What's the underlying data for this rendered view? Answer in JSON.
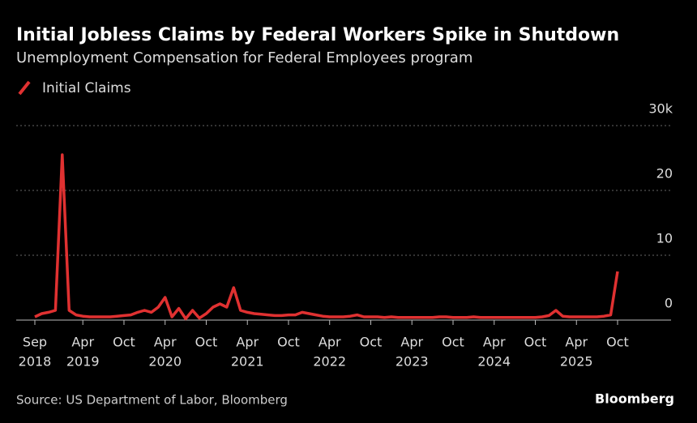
{
  "chart_data": {
    "type": "line",
    "title": "Initial Jobless Claims by Federal Workers Spike in Shutdown",
    "subtitle": "Unemployment Compensation for Federal Employees program",
    "source": "Source: US Department of Labor, Bloomberg",
    "brand": "Bloomberg",
    "x": [
      "2018-09",
      "2018-10",
      "2018-11",
      "2018-12",
      "2019-01",
      "2019-02",
      "2019-03",
      "2019-04",
      "2019-05",
      "2019-06",
      "2019-07",
      "2019-08",
      "2019-09",
      "2019-10",
      "2019-11",
      "2019-12",
      "2020-01",
      "2020-02",
      "2020-03",
      "2020-04",
      "2020-05",
      "2020-06",
      "2020-07",
      "2020-08",
      "2020-09",
      "2020-10",
      "2020-11",
      "2020-12",
      "2021-01",
      "2021-02",
      "2021-03",
      "2021-04",
      "2021-05",
      "2021-06",
      "2021-07",
      "2021-08",
      "2021-09",
      "2021-10",
      "2021-11",
      "2021-12",
      "2022-01",
      "2022-02",
      "2022-03",
      "2022-04",
      "2022-05",
      "2022-06",
      "2022-07",
      "2022-08",
      "2022-09",
      "2022-10",
      "2022-11",
      "2022-12",
      "2023-01",
      "2023-02",
      "2023-03",
      "2023-04",
      "2023-05",
      "2023-06",
      "2023-07",
      "2023-08",
      "2023-09",
      "2023-10",
      "2023-11",
      "2023-12",
      "2024-01",
      "2024-02",
      "2024-03",
      "2024-04",
      "2024-05",
      "2024-06",
      "2024-07",
      "2024-08",
      "2024-09",
      "2024-10",
      "2024-11",
      "2024-12",
      "2025-01",
      "2025-02",
      "2025-03",
      "2025-04",
      "2025-05",
      "2025-06",
      "2025-07",
      "2025-08",
      "2025-09",
      "2025-10"
    ],
    "series": [
      {
        "name": "Initial Claims",
        "color": "#e03131",
        "values": [
          0.5,
          1,
          1.2,
          1.5,
          25.5,
          1.5,
          0.8,
          0.6,
          0.5,
          0.5,
          0.5,
          0.5,
          0.6,
          0.7,
          0.8,
          1.2,
          1.5,
          1.2,
          2,
          3.5,
          0.5,
          1.8,
          0.2,
          1.5,
          0.3,
          1,
          2,
          2.5,
          2,
          5,
          1.5,
          1.2,
          1,
          0.9,
          0.8,
          0.7,
          0.7,
          0.8,
          0.8,
          1.2,
          1,
          0.8,
          0.6,
          0.5,
          0.5,
          0.5,
          0.6,
          0.8,
          0.5,
          0.5,
          0.5,
          0.4,
          0.5,
          0.4,
          0.4,
          0.4,
          0.4,
          0.4,
          0.4,
          0.5,
          0.5,
          0.4,
          0.4,
          0.4,
          0.5,
          0.4,
          0.4,
          0.4,
          0.4,
          0.4,
          0.4,
          0.4,
          0.4,
          0.4,
          0.5,
          0.7,
          1.5,
          0.6,
          0.5,
          0.5,
          0.5,
          0.5,
          0.5,
          0.6,
          0.8,
          7.5
        ]
      }
    ],
    "ylim": [
      0,
      30
    ],
    "yticks": [
      0,
      10,
      20,
      {
        "value": 30,
        "label": "30k"
      }
    ],
    "xticks": [
      {
        "value": "2018-09",
        "label": "Sep",
        "sublabel": "2018"
      },
      {
        "value": "2019-04",
        "label": "Apr",
        "sublabel": "2019"
      },
      {
        "value": "2019-10",
        "label": "Oct"
      },
      {
        "value": "2020-04",
        "label": "Apr",
        "sublabel": "2020"
      },
      {
        "value": "2020-10",
        "label": "Oct"
      },
      {
        "value": "2021-04",
        "label": "Apr",
        "sublabel": "2021"
      },
      {
        "value": "2021-10",
        "label": "Oct"
      },
      {
        "value": "2022-04",
        "label": "Apr",
        "sublabel": "2022"
      },
      {
        "value": "2022-10",
        "label": "Oct"
      },
      {
        "value": "2023-04",
        "label": "Apr",
        "sublabel": "2023"
      },
      {
        "value": "2023-10",
        "label": "Oct"
      },
      {
        "value": "2024-04",
        "label": "Apr",
        "sublabel": "2024"
      },
      {
        "value": "2024-10",
        "label": "Oct"
      },
      {
        "value": "2025-04",
        "label": "Apr",
        "sublabel": "2025"
      },
      {
        "value": "2025-10",
        "label": "Oct"
      }
    ],
    "grid": true
  }
}
